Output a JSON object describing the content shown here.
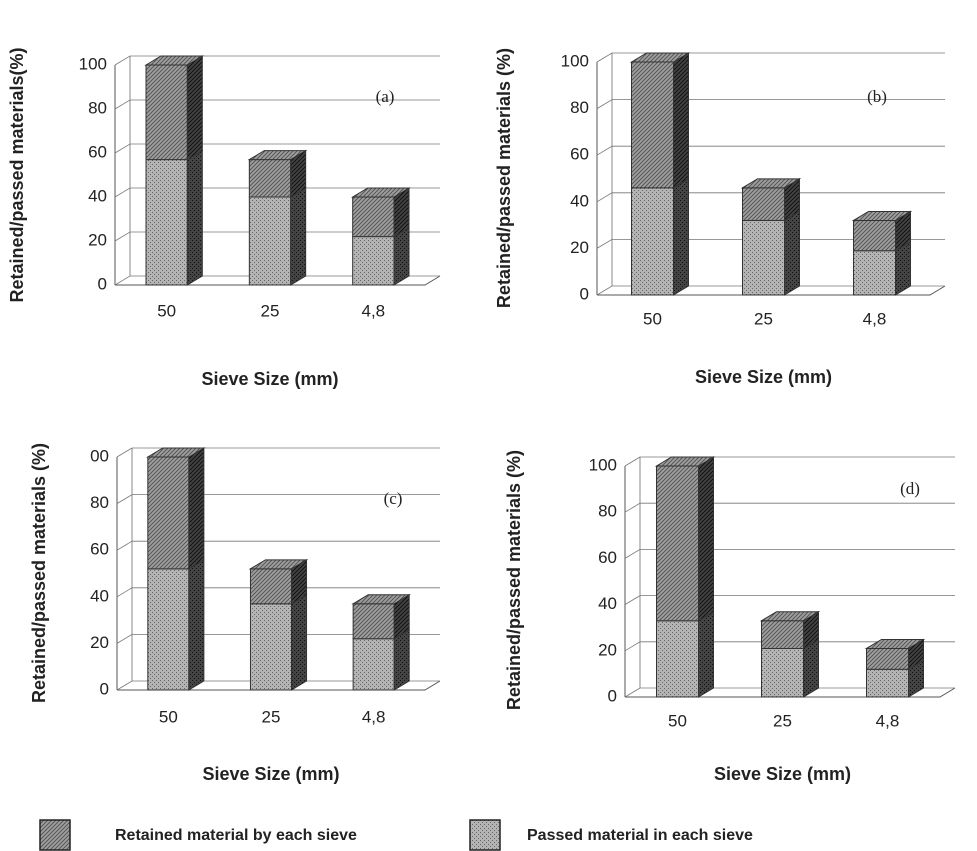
{
  "legend": "bottom",
  "chart_data": [
    {
      "type": "bar3d_stacked",
      "annotation": "(a)",
      "x_label": "Sieve Size (mm)",
      "y_label": "Retained/passed materials(%)",
      "categories": [
        "50",
        "25",
        "4,8"
      ],
      "ylim": [
        0,
        100
      ],
      "yticks": [
        0,
        20,
        40,
        60,
        80,
        100
      ],
      "grid": true,
      "series": [
        {
          "name": "Passed material in each sieve",
          "color": "#b4b4b4",
          "pattern": "dots",
          "values": [
            57,
            40,
            22
          ]
        },
        {
          "name": "Retained material by each sieve",
          "color": "#a0a0a0",
          "pattern": "hatch",
          "values": [
            43,
            17,
            18
          ]
        }
      ]
    },
    {
      "type": "bar3d_stacked",
      "annotation": "(b)",
      "x_label": "Sieve Size (mm)",
      "y_label": "Retained/passed materials (%)",
      "categories": [
        "50",
        "25",
        "4,8"
      ],
      "ylim": [
        0,
        100
      ],
      "yticks": [
        0,
        20,
        40,
        60,
        80,
        100
      ],
      "grid": true,
      "series": [
        {
          "name": "Passed material in each sieve",
          "color": "#b4b4b4",
          "pattern": "dots",
          "values": [
            46,
            32,
            19
          ]
        },
        {
          "name": "Retained material by each sieve",
          "color": "#a0a0a0",
          "pattern": "hatch",
          "values": [
            54,
            14,
            13
          ]
        }
      ]
    },
    {
      "type": "bar3d_stacked",
      "annotation": "(c)",
      "x_label": "Sieve Size (mm)",
      "y_label": "Retained/passed materials (%)",
      "categories": [
        "50",
        "25",
        "4,8"
      ],
      "ylim": [
        0,
        100
      ],
      "yticks": [
        0,
        20,
        40,
        60,
        80,
        {
          "value": 100,
          "label": "00"
        }
      ],
      "grid": true,
      "series": [
        {
          "name": "Passed material in each sieve",
          "color": "#b4b4b4",
          "pattern": "dots",
          "values": [
            52,
            37,
            22
          ]
        },
        {
          "name": "Retained material by each sieve",
          "color": "#a0a0a0",
          "pattern": "hatch",
          "values": [
            48,
            15,
            15
          ]
        }
      ]
    },
    {
      "type": "bar3d_stacked",
      "annotation": "(d)",
      "x_label": "Sieve Size (mm)",
      "y_label": "Retained/passed materials (%)",
      "categories": [
        "50",
        "25",
        "4,8"
      ],
      "ylim": [
        0,
        100
      ],
      "yticks": [
        0,
        20,
        40,
        60,
        80,
        100
      ],
      "grid": true,
      "series": [
        {
          "name": "Passed material in each sieve",
          "color": "#b4b4b4",
          "pattern": "dots",
          "values": [
            33,
            21,
            12
          ]
        },
        {
          "name": "Retained material by each sieve",
          "color": "#a0a0a0",
          "pattern": "hatch",
          "values": [
            67,
            12,
            9
          ]
        }
      ]
    }
  ]
}
